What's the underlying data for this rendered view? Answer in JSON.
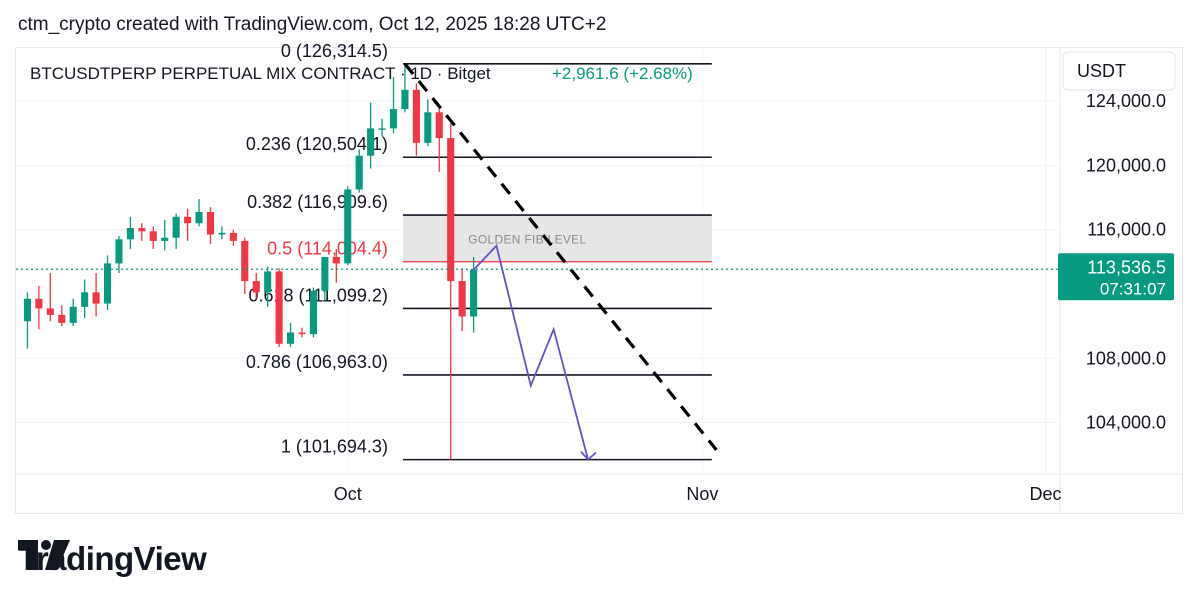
{
  "header": {
    "caption": "ctm_crypto created with TradingView.com, Oct 12, 2025 18:28 UTC+2"
  },
  "symbol_bar": {
    "symbol": "BTCUSDTPERP PERPETUAL MIX CONTRACT · 1D · Bitget",
    "change": "+2,961.6 (+2.68%)",
    "change_color": "#089981"
  },
  "price_scale": {
    "currency": "USDT",
    "ticks": [
      "124,000.0",
      "120,000.0",
      "116,000.0",
      "108,000.0",
      "104,000.0"
    ],
    "tick_values": [
      124000,
      120000,
      116000,
      108000,
      104000
    ]
  },
  "last_price_badge": {
    "price": "113,536.5",
    "countdown": "07:31:07",
    "value": 113536.5,
    "color": "#089981"
  },
  "time_axis": {
    "labels": [
      "Oct",
      "Nov",
      "Dec"
    ],
    "dates": [
      "2025-10-01",
      "2025-11-01",
      "2025-12-01"
    ]
  },
  "chart_data": {
    "type": "candlestick",
    "x_type": "date",
    "interval": "1D",
    "colors": {
      "up": "#089981",
      "down": "#f23645",
      "fib_line": "#131722",
      "fib_key": "#f23645",
      "zone": "#e3e3e3",
      "projection": "#6a4fc7"
    },
    "candles": [
      {
        "date": "2025-09-03",
        "open": 110300,
        "high": 112100,
        "low": 108600,
        "close": 111700
      },
      {
        "date": "2025-09-04",
        "open": 111700,
        "high": 112500,
        "low": 109800,
        "close": 111100
      },
      {
        "date": "2025-09-05",
        "open": 111100,
        "high": 113300,
        "low": 110300,
        "close": 110700
      },
      {
        "date": "2025-09-06",
        "open": 110700,
        "high": 111300,
        "low": 110000,
        "close": 110200
      },
      {
        "date": "2025-09-07",
        "open": 110200,
        "high": 111700,
        "low": 110000,
        "close": 111200
      },
      {
        "date": "2025-09-08",
        "open": 111200,
        "high": 112900,
        "low": 110500,
        "close": 112100
      },
      {
        "date": "2025-09-09",
        "open": 112100,
        "high": 113300,
        "low": 110600,
        "close": 111400
      },
      {
        "date": "2025-09-10",
        "open": 111400,
        "high": 114400,
        "low": 111000,
        "close": 113900
      },
      {
        "date": "2025-09-11",
        "open": 113900,
        "high": 115600,
        "low": 113300,
        "close": 115400
      },
      {
        "date": "2025-09-12",
        "open": 115400,
        "high": 116800,
        "low": 114800,
        "close": 116100
      },
      {
        "date": "2025-09-13",
        "open": 116100,
        "high": 116400,
        "low": 115300,
        "close": 115900
      },
      {
        "date": "2025-09-14",
        "open": 115900,
        "high": 116200,
        "low": 114800,
        "close": 115300
      },
      {
        "date": "2025-09-15",
        "open": 115300,
        "high": 116600,
        "low": 114700,
        "close": 115500
      },
      {
        "date": "2025-09-16",
        "open": 115500,
        "high": 117000,
        "low": 114800,
        "close": 116800
      },
      {
        "date": "2025-09-17",
        "open": 116800,
        "high": 117300,
        "low": 115300,
        "close": 116400
      },
      {
        "date": "2025-09-18",
        "open": 116400,
        "high": 117900,
        "low": 116200,
        "close": 117100
      },
      {
        "date": "2025-09-19",
        "open": 117100,
        "high": 117400,
        "low": 115100,
        "close": 115700
      },
      {
        "date": "2025-09-20",
        "open": 115700,
        "high": 116200,
        "low": 115400,
        "close": 115800
      },
      {
        "date": "2025-09-21",
        "open": 115800,
        "high": 116000,
        "low": 115000,
        "close": 115300
      },
      {
        "date": "2025-09-22",
        "open": 115300,
        "high": 115500,
        "low": 112000,
        "close": 112800
      },
      {
        "date": "2025-09-23",
        "open": 112800,
        "high": 113300,
        "low": 111700,
        "close": 112100
      },
      {
        "date": "2025-09-24",
        "open": 112100,
        "high": 113700,
        "low": 111200,
        "close": 113400
      },
      {
        "date": "2025-09-25",
        "open": 113400,
        "high": 113600,
        "low": 108700,
        "close": 108900
      },
      {
        "date": "2025-09-26",
        "open": 108900,
        "high": 110200,
        "low": 108700,
        "close": 109600
      },
      {
        "date": "2025-09-27",
        "open": 109600,
        "high": 109900,
        "low": 109300,
        "close": 109500
      },
      {
        "date": "2025-09-28",
        "open": 109500,
        "high": 112400,
        "low": 109300,
        "close": 112200
      },
      {
        "date": "2025-09-29",
        "open": 112200,
        "high": 114300,
        "low": 111600,
        "close": 114300
      },
      {
        "date": "2025-09-30",
        "open": 114300,
        "high": 114800,
        "low": 112700,
        "close": 113900
      },
      {
        "date": "2025-10-01",
        "open": 113900,
        "high": 118700,
        "low": 113800,
        "close": 118500
      },
      {
        "date": "2025-10-02",
        "open": 118500,
        "high": 121000,
        "low": 118300,
        "close": 120600
      },
      {
        "date": "2025-10-03",
        "open": 120600,
        "high": 123900,
        "low": 119800,
        "close": 122300
      },
      {
        "date": "2025-10-04",
        "open": 122300,
        "high": 122900,
        "low": 121800,
        "close": 122300
      },
      {
        "date": "2025-10-05",
        "open": 122300,
        "high": 125500,
        "low": 122000,
        "close": 123500
      },
      {
        "date": "2025-10-06",
        "open": 123500,
        "high": 126200,
        "low": 123300,
        "close": 124700
      },
      {
        "date": "2025-10-07",
        "open": 124700,
        "high": 125100,
        "low": 120600,
        "close": 121400
      },
      {
        "date": "2025-10-08",
        "open": 121400,
        "high": 124100,
        "low": 121200,
        "close": 123300
      },
      {
        "date": "2025-10-09",
        "open": 123300,
        "high": 123700,
        "low": 119600,
        "close": 121700
      },
      {
        "date": "2025-10-10",
        "open": 121700,
        "high": 122600,
        "low": 101700,
        "close": 112800
      },
      {
        "date": "2025-10-11",
        "open": 112800,
        "high": 113600,
        "low": 109700,
        "close": 110600
      },
      {
        "date": "2025-10-12",
        "open": 110600,
        "high": 114300,
        "low": 109600,
        "close": 113500
      }
    ],
    "fib_levels": [
      {
        "ratio": "0",
        "price": 126314.5,
        "label": "0 (126,314.5)"
      },
      {
        "ratio": "0.236",
        "price": 120504.1,
        "label": "0.236 (120,504.1)"
      },
      {
        "ratio": "0.382",
        "price": 116909.6,
        "label": "0.382 (116,909.6)"
      },
      {
        "ratio": "0.5",
        "price": 114004.4,
        "label": "0.5 (114,004.4)"
      },
      {
        "ratio": "0.618",
        "price": 111099.2,
        "label": "0.618 (111,099.2)"
      },
      {
        "ratio": "0.786",
        "price": 106963.0,
        "label": "0.786 (106,963.0)"
      },
      {
        "ratio": "1",
        "price": 101694.3,
        "label": "1 (101,694.3)"
      }
    ],
    "golden_zone": {
      "label": "GOLDEN FIB LEVEL",
      "top": 116909.6,
      "bottom": 114004.4
    },
    "trend_line": [
      {
        "date": "2025-10-06",
        "price": 126314.5
      },
      {
        "date": "2025-11-01",
        "price": 102300
      }
    ],
    "projection_path": [
      {
        "date": "2025-10-12",
        "price": 113500
      },
      {
        "date": "2025-10-14",
        "price": 115000
      },
      {
        "date": "2025-10-17",
        "price": 106300
      },
      {
        "date": "2025-10-19",
        "price": 109800
      },
      {
        "date": "2025-10-22",
        "price": 101700
      }
    ],
    "ylim": [
      100800,
      127300
    ],
    "xlim": [
      "2025-09-02",
      "2025-12-02"
    ]
  }
}
